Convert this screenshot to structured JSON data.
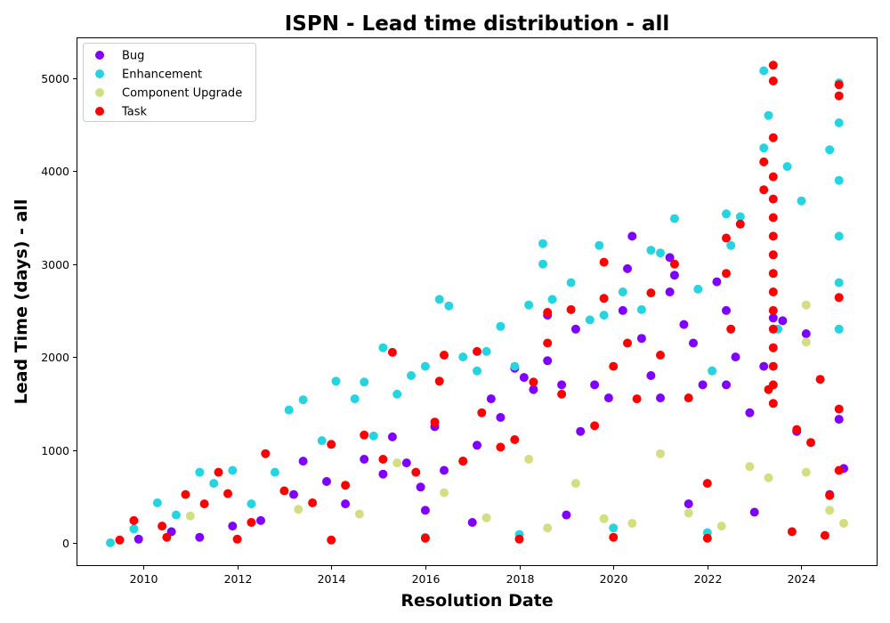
{
  "chart_data": {
    "type": "scatter",
    "title": "ISPN - Lead time distribution - all",
    "xlabel": "Resolution Date",
    "ylabel": "Lead Time (days) - all",
    "xlim": [
      2008.6,
      2025.6
    ],
    "ylim": [
      -240,
      5430
    ],
    "x_ticks": [
      2010,
      2012,
      2014,
      2016,
      2018,
      2020,
      2022,
      2024
    ],
    "y_ticks": [
      0,
      1000,
      2000,
      3000,
      4000,
      5000
    ],
    "x_tick_labels": [
      "2010",
      "2012",
      "2014",
      "2016",
      "2018",
      "2020",
      "2022",
      "2024"
    ],
    "y_tick_labels": [
      "0",
      "1000",
      "2000",
      "3000",
      "4000",
      "5000"
    ],
    "grid": false,
    "legend_position": "upper left",
    "series": [
      {
        "name": "Bug",
        "color": "#8000ff",
        "points": [
          [
            2009.9,
            40
          ],
          [
            2010.6,
            120
          ],
          [
            2011.2,
            60
          ],
          [
            2011.9,
            180
          ],
          [
            2012.5,
            240
          ],
          [
            2013.2,
            520
          ],
          [
            2013.4,
            880
          ],
          [
            2013.9,
            660
          ],
          [
            2014.3,
            420
          ],
          [
            2014.7,
            900
          ],
          [
            2015.1,
            740
          ],
          [
            2015.3,
            1140
          ],
          [
            2015.6,
            860
          ],
          [
            2015.9,
            600
          ],
          [
            2016.2,
            1250
          ],
          [
            2016.4,
            780
          ],
          [
            2016.8,
            880
          ],
          [
            2017.1,
            1050
          ],
          [
            2017.4,
            1550
          ],
          [
            2017.6,
            1350
          ],
          [
            2017.9,
            1880
          ],
          [
            2018.1,
            1780
          ],
          [
            2018.3,
            1650
          ],
          [
            2018.6,
            1960
          ],
          [
            2018.6,
            2450
          ],
          [
            2018.9,
            1700
          ],
          [
            2019.2,
            2300
          ],
          [
            2019.3,
            1200
          ],
          [
            2019.6,
            1700
          ],
          [
            2019.9,
            1560
          ],
          [
            2020.2,
            2500
          ],
          [
            2020.3,
            2950
          ],
          [
            2020.4,
            3300
          ],
          [
            2020.6,
            2200
          ],
          [
            2020.8,
            1800
          ],
          [
            2021.0,
            1560
          ],
          [
            2021.2,
            2700
          ],
          [
            2021.2,
            3070
          ],
          [
            2021.3,
            2880
          ],
          [
            2021.5,
            2350
          ],
          [
            2021.7,
            2150
          ],
          [
            2021.9,
            1700
          ],
          [
            2022.2,
            2810
          ],
          [
            2022.4,
            2500
          ],
          [
            2022.4,
            1700
          ],
          [
            2022.6,
            2000
          ],
          [
            2022.9,
            1400
          ],
          [
            2023.2,
            1900
          ],
          [
            2023.4,
            2420
          ],
          [
            2023.6,
            2390
          ],
          [
            2023.9,
            1200
          ],
          [
            2024.1,
            2250
          ],
          [
            2024.6,
            520
          ],
          [
            2024.8,
            1330
          ],
          [
            2024.9,
            800
          ],
          [
            2016.0,
            350
          ],
          [
            2017.0,
            220
          ],
          [
            2019.0,
            300
          ],
          [
            2021.6,
            420
          ],
          [
            2023.0,
            330
          ]
        ]
      },
      {
        "name": "Enhancement",
        "color": "#26d4e1",
        "points": [
          [
            2009.3,
            0
          ],
          [
            2009.8,
            150
          ],
          [
            2010.3,
            430
          ],
          [
            2010.7,
            300
          ],
          [
            2011.2,
            760
          ],
          [
            2011.5,
            640
          ],
          [
            2011.9,
            780
          ],
          [
            2012.3,
            420
          ],
          [
            2012.8,
            760
          ],
          [
            2013.1,
            1430
          ],
          [
            2013.4,
            1540
          ],
          [
            2013.8,
            1100
          ],
          [
            2014.1,
            1740
          ],
          [
            2014.5,
            1550
          ],
          [
            2014.7,
            1730
          ],
          [
            2014.9,
            1150
          ],
          [
            2015.1,
            2100
          ],
          [
            2015.4,
            1600
          ],
          [
            2015.7,
            1800
          ],
          [
            2016.0,
            1900
          ],
          [
            2016.3,
            2620
          ],
          [
            2016.5,
            2550
          ],
          [
            2016.8,
            2000
          ],
          [
            2017.1,
            1850
          ],
          [
            2017.3,
            2060
          ],
          [
            2017.6,
            2330
          ],
          [
            2017.9,
            1900
          ],
          [
            2018.2,
            2560
          ],
          [
            2018.5,
            3220
          ],
          [
            2018.5,
            3000
          ],
          [
            2018.7,
            2620
          ],
          [
            2019.1,
            2800
          ],
          [
            2019.5,
            2400
          ],
          [
            2019.7,
            3200
          ],
          [
            2019.8,
            2450
          ],
          [
            2020.2,
            2700
          ],
          [
            2020.6,
            2510
          ],
          [
            2020.8,
            3150
          ],
          [
            2021.0,
            3120
          ],
          [
            2021.3,
            3490
          ],
          [
            2021.8,
            2730
          ],
          [
            2022.1,
            1850
          ],
          [
            2022.4,
            3540
          ],
          [
            2022.5,
            3200
          ],
          [
            2022.7,
            3510
          ],
          [
            2023.2,
            5080
          ],
          [
            2023.2,
            4250
          ],
          [
            2023.3,
            4600
          ],
          [
            2023.7,
            4050
          ],
          [
            2024.0,
            3680
          ],
          [
            2024.6,
            4230
          ],
          [
            2024.8,
            4950
          ],
          [
            2024.8,
            4520
          ],
          [
            2024.8,
            3900
          ],
          [
            2024.8,
            3300
          ],
          [
            2024.8,
            2800
          ],
          [
            2024.8,
            2300
          ],
          [
            2016.0,
            60
          ],
          [
            2018.0,
            90
          ],
          [
            2020.0,
            160
          ],
          [
            2022.0,
            110
          ],
          [
            2023.5,
            2300
          ]
        ]
      },
      {
        "name": "Component Upgrade",
        "color": "#d4dd80",
        "points": [
          [
            2011.0,
            290
          ],
          [
            2013.3,
            360
          ],
          [
            2014.6,
            310
          ],
          [
            2015.4,
            860
          ],
          [
            2016.4,
            540
          ],
          [
            2017.3,
            270
          ],
          [
            2018.2,
            900
          ],
          [
            2018.6,
            160
          ],
          [
            2019.2,
            640
          ],
          [
            2019.8,
            260
          ],
          [
            2020.4,
            210
          ],
          [
            2021.0,
            960
          ],
          [
            2021.6,
            320
          ],
          [
            2022.3,
            180
          ],
          [
            2022.9,
            820
          ],
          [
            2023.3,
            700
          ],
          [
            2024.1,
            2560
          ],
          [
            2024.1,
            2160
          ],
          [
            2024.1,
            760
          ],
          [
            2024.6,
            350
          ],
          [
            2024.9,
            210
          ]
        ]
      },
      {
        "name": "Task",
        "color": "#ff0000",
        "points": [
          [
            2009.5,
            30
          ],
          [
            2009.8,
            240
          ],
          [
            2010.4,
            180
          ],
          [
            2010.9,
            520
          ],
          [
            2011.3,
            420
          ],
          [
            2011.6,
            760
          ],
          [
            2011.8,
            530
          ],
          [
            2012.3,
            220
          ],
          [
            2012.6,
            960
          ],
          [
            2013.0,
            560
          ],
          [
            2013.6,
            430
          ],
          [
            2014.0,
            1060
          ],
          [
            2014.3,
            620
          ],
          [
            2014.7,
            1160
          ],
          [
            2015.1,
            900
          ],
          [
            2015.3,
            2050
          ],
          [
            2015.8,
            760
          ],
          [
            2016.2,
            1300
          ],
          [
            2016.3,
            1740
          ],
          [
            2016.4,
            2020
          ],
          [
            2016.8,
            880
          ],
          [
            2017.1,
            2060
          ],
          [
            2017.2,
            1400
          ],
          [
            2017.6,
            1030
          ],
          [
            2017.9,
            1110
          ],
          [
            2018.3,
            1730
          ],
          [
            2018.6,
            2480
          ],
          [
            2018.6,
            2150
          ],
          [
            2018.9,
            1600
          ],
          [
            2019.1,
            2510
          ],
          [
            2019.6,
            1260
          ],
          [
            2019.8,
            3020
          ],
          [
            2019.8,
            2630
          ],
          [
            2020.0,
            1900
          ],
          [
            2020.3,
            2150
          ],
          [
            2020.5,
            1550
          ],
          [
            2020.8,
            2690
          ],
          [
            2021.0,
            2020
          ],
          [
            2021.3,
            3000
          ],
          [
            2021.6,
            1560
          ],
          [
            2022.0,
            640
          ],
          [
            2022.4,
            3280
          ],
          [
            2022.4,
            2900
          ],
          [
            2022.5,
            2300
          ],
          [
            2022.7,
            3430
          ],
          [
            2023.2,
            4100
          ],
          [
            2023.2,
            3800
          ],
          [
            2023.4,
            5140
          ],
          [
            2023.4,
            4970
          ],
          [
            2023.4,
            4360
          ],
          [
            2023.4,
            3940
          ],
          [
            2023.4,
            3700
          ],
          [
            2023.4,
            3500
          ],
          [
            2023.4,
            3300
          ],
          [
            2023.4,
            3100
          ],
          [
            2023.4,
            2900
          ],
          [
            2023.4,
            2700
          ],
          [
            2023.4,
            2500
          ],
          [
            2023.4,
            2300
          ],
          [
            2023.4,
            2100
          ],
          [
            2023.4,
            1900
          ],
          [
            2023.4,
            1700
          ],
          [
            2023.4,
            1500
          ],
          [
            2023.3,
            1650
          ],
          [
            2023.9,
            1220
          ],
          [
            2024.2,
            1080
          ],
          [
            2024.4,
            1760
          ],
          [
            2024.8,
            4930
          ],
          [
            2024.8,
            4810
          ],
          [
            2024.8,
            2640
          ],
          [
            2024.8,
            1440
          ],
          [
            2024.8,
            780
          ],
          [
            2024.6,
            510
          ],
          [
            2010.5,
            60
          ],
          [
            2012.0,
            40
          ],
          [
            2014.0,
            30
          ],
          [
            2016.0,
            50
          ],
          [
            2018.0,
            40
          ],
          [
            2020.0,
            60
          ],
          [
            2022.0,
            50
          ],
          [
            2023.8,
            120
          ],
          [
            2024.5,
            80
          ]
        ]
      }
    ]
  }
}
